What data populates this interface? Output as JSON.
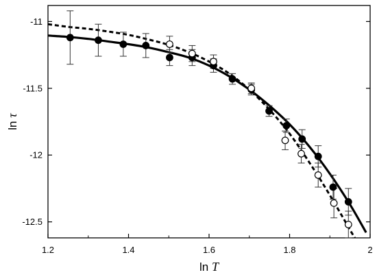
{
  "chart_data": {
    "type": "scatter",
    "xlabel": {
      "prefix": "ln ",
      "var": "T"
    },
    "ylabel": {
      "prefix": "ln ",
      "var": "τ"
    },
    "xlim": [
      1.2,
      2.0
    ],
    "ylim": [
      -12.62,
      -10.88
    ],
    "x_ticks": [
      1.2,
      1.4,
      1.6,
      1.8,
      2.0
    ],
    "x_tick_labels": [
      "1.2",
      "1.4",
      "1.6",
      "1.8",
      "2"
    ],
    "y_ticks": [
      -11,
      -11.5,
      -12,
      -12.5
    ],
    "y_tick_labels": [
      "-11",
      "-11.5",
      "-12",
      "-12.5"
    ],
    "grid": false,
    "legend": "none",
    "series": [
      {
        "marker": "filled-circle",
        "color": "#000000",
        "points": [
          {
            "x": 1.255,
            "y": -11.12,
            "err": 0.2
          },
          {
            "x": 1.325,
            "y": -11.14,
            "err": 0.12
          },
          {
            "x": 1.387,
            "y": -11.17,
            "err": 0.09
          },
          {
            "x": 1.443,
            "y": -11.18,
            "err": 0.09
          },
          {
            "x": 1.502,
            "y": -11.27,
            "err": 0.06
          },
          {
            "x": 1.558,
            "y": -11.27,
            "err": 0.06
          },
          {
            "x": 1.611,
            "y": -11.33,
            "err": 0.05
          },
          {
            "x": 1.658,
            "y": -11.43,
            "err": 0.04
          },
          {
            "x": 1.705,
            "y": -11.51,
            "err": 0.04
          },
          {
            "x": 1.749,
            "y": -11.67,
            "err": 0.04
          },
          {
            "x": 1.792,
            "y": -11.78,
            "err": 0.05
          },
          {
            "x": 1.831,
            "y": -11.88,
            "err": 0.07
          },
          {
            "x": 1.871,
            "y": -12.01,
            "err": 0.08
          },
          {
            "x": 1.908,
            "y": -12.24,
            "err": 0.09
          },
          {
            "x": 1.946,
            "y": -12.35,
            "err": 0.1
          }
        ]
      },
      {
        "marker": "open-circle",
        "color": "#000000",
        "points": [
          {
            "x": 1.502,
            "y": -11.17,
            "err": 0.06
          },
          {
            "x": 1.558,
            "y": -11.24,
            "err": 0.06
          },
          {
            "x": 1.611,
            "y": -11.3,
            "err": 0.05
          },
          {
            "x": 1.705,
            "y": -11.5,
            "err": 0.04
          },
          {
            "x": 1.789,
            "y": -11.89,
            "err": 0.07
          },
          {
            "x": 1.829,
            "y": -11.99,
            "err": 0.07
          },
          {
            "x": 1.871,
            "y": -12.15,
            "err": 0.09
          },
          {
            "x": 1.91,
            "y": -12.36,
            "err": 0.11
          },
          {
            "x": 1.946,
            "y": -12.52,
            "err": 0.1
          }
        ]
      }
    ],
    "fits": [
      {
        "style": "solid",
        "color": "#000000",
        "points": [
          [
            1.2,
            -11.105
          ],
          [
            1.25,
            -11.115
          ],
          [
            1.3,
            -11.13
          ],
          [
            1.35,
            -11.15
          ],
          [
            1.4,
            -11.17
          ],
          [
            1.45,
            -11.195
          ],
          [
            1.5,
            -11.23
          ],
          [
            1.55,
            -11.27
          ],
          [
            1.6,
            -11.33
          ],
          [
            1.65,
            -11.41
          ],
          [
            1.7,
            -11.51
          ],
          [
            1.75,
            -11.63
          ],
          [
            1.8,
            -11.77
          ],
          [
            1.85,
            -11.94
          ],
          [
            1.9,
            -12.14
          ],
          [
            1.95,
            -12.37
          ],
          [
            1.99,
            -12.58
          ]
        ]
      },
      {
        "style": "dashed",
        "color": "#000000",
        "points": [
          [
            1.2,
            -11.02
          ],
          [
            1.25,
            -11.04
          ],
          [
            1.3,
            -11.055
          ],
          [
            1.35,
            -11.075
          ],
          [
            1.4,
            -11.1
          ],
          [
            1.45,
            -11.135
          ],
          [
            1.5,
            -11.175
          ],
          [
            1.55,
            -11.23
          ],
          [
            1.6,
            -11.3
          ],
          [
            1.65,
            -11.39
          ],
          [
            1.7,
            -11.51
          ],
          [
            1.75,
            -11.66
          ],
          [
            1.8,
            -11.84
          ],
          [
            1.85,
            -12.06
          ],
          [
            1.9,
            -12.3
          ],
          [
            1.95,
            -12.56
          ],
          [
            1.962,
            -12.62
          ]
        ]
      }
    ]
  }
}
